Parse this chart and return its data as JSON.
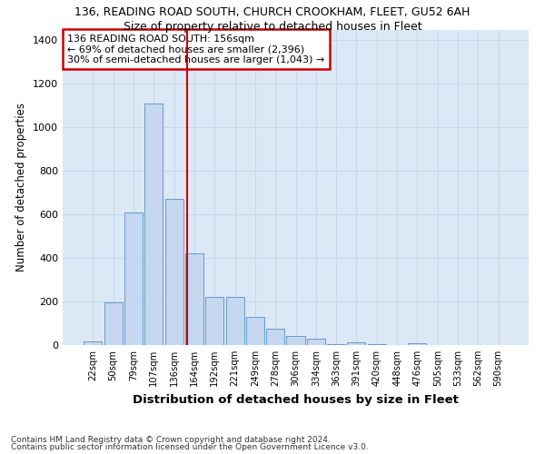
{
  "title1": "136, READING ROAD SOUTH, CHURCH CROOKHAM, FLEET, GU52 6AH",
  "title2": "Size of property relative to detached houses in Fleet",
  "xlabel": "Distribution of detached houses by size in Fleet",
  "ylabel": "Number of detached properties",
  "categories": [
    "22sqm",
    "50sqm",
    "79sqm",
    "107sqm",
    "136sqm",
    "164sqm",
    "192sqm",
    "221sqm",
    "249sqm",
    "278sqm",
    "306sqm",
    "334sqm",
    "363sqm",
    "391sqm",
    "420sqm",
    "448sqm",
    "476sqm",
    "505sqm",
    "533sqm",
    "562sqm",
    "590sqm"
  ],
  "values": [
    15,
    195,
    610,
    1110,
    670,
    420,
    220,
    220,
    130,
    75,
    40,
    28,
    5,
    12,
    5,
    0,
    8,
    0,
    0,
    0,
    0
  ],
  "bar_color": "#c5d8f0",
  "bar_edge_color": "#6699cc",
  "vline_color": "#cc0000",
  "annotation_text": "136 READING ROAD SOUTH: 156sqm\n← 69% of detached houses are smaller (2,396)\n30% of semi-detached houses are larger (1,043) →",
  "annotation_box_color": "#ffffff",
  "annotation_border_color": "#cc0000",
  "ylim": [
    0,
    1450
  ],
  "yticks": [
    0,
    200,
    400,
    600,
    800,
    1000,
    1200,
    1400
  ],
  "grid_color": "#c8d8ea",
  "plot_bg_color": "#dce8f5",
  "fig_bg_color": "#ffffff",
  "footer1": "Contains HM Land Registry data © Crown copyright and database right 2024.",
  "footer2": "Contains public sector information licensed under the Open Government Licence v3.0."
}
